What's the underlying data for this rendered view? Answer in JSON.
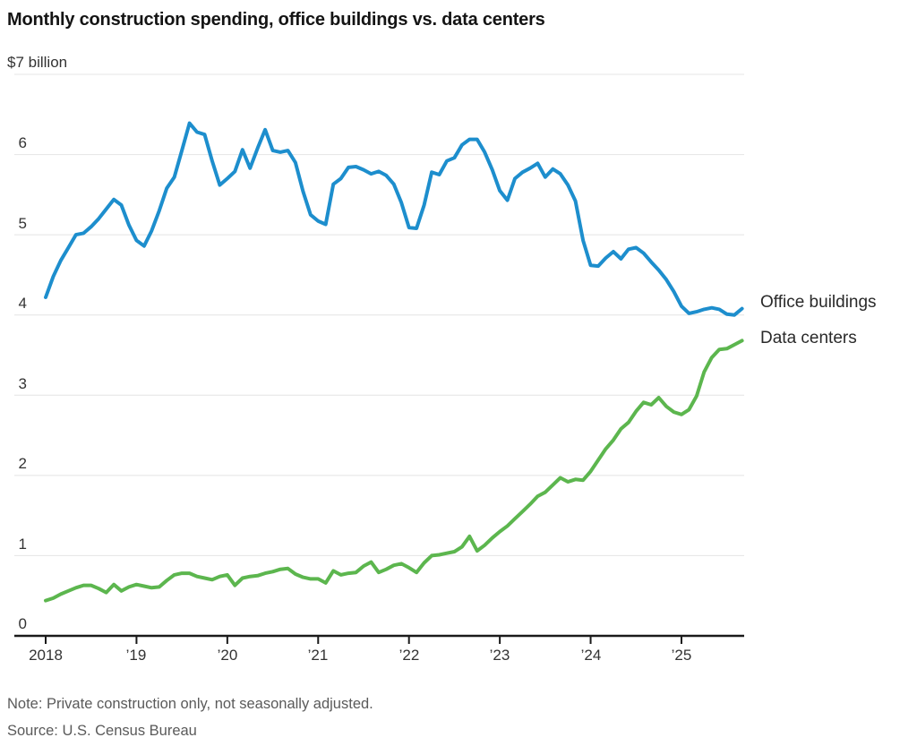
{
  "title": "Monthly construction spending, office buildings vs. data centers",
  "y_axis": {
    "top_label": "$7 billion",
    "ticks": [
      "6",
      "5",
      "4",
      "3",
      "2",
      "1",
      "0"
    ]
  },
  "x_axis": {
    "ticks": [
      "2018",
      "’19",
      "’20",
      "’21",
      "’22",
      "’23",
      "’24",
      "’25"
    ]
  },
  "legend": {
    "office": "Office buildings",
    "datacenters": "Data centers"
  },
  "note": "Note: Private construction only, not seasonally adjusted.",
  "source": "Source: U.S. Census Bureau",
  "colors": {
    "office": "#1d8ecd",
    "datacenters": "#5cb64e",
    "grid": "#e4e4e4",
    "axis": "#1a1a1a"
  },
  "chart_data": {
    "type": "line",
    "title": "Monthly construction spending, office buildings vs. data centers",
    "unit": "USD billions",
    "frequency": "monthly",
    "x_start": "Jan 2018",
    "x_end": "Sep 2025",
    "ylim": [
      0,
      7
    ],
    "grid": "horizontal",
    "legend_position": "right-of-line-ends",
    "x_tick_labels": [
      "2018",
      "’19",
      "’20",
      "’21",
      "’22",
      "’23",
      "’24",
      "’25"
    ],
    "series": [
      {
        "name": "Office buildings",
        "color": "#1d8ecd",
        "values": [
          4.22,
          4.48,
          4.68,
          4.84,
          5.0,
          5.02,
          5.1,
          5.2,
          5.32,
          5.44,
          5.37,
          5.12,
          4.93,
          4.86,
          5.05,
          5.3,
          5.58,
          5.72,
          6.05,
          6.39,
          6.28,
          6.25,
          5.92,
          5.62,
          5.7,
          5.79,
          6.06,
          5.83,
          6.08,
          6.31,
          6.05,
          6.03,
          6.05,
          5.9,
          5.54,
          5.25,
          5.17,
          5.13,
          5.63,
          5.7,
          5.84,
          5.85,
          5.81,
          5.76,
          5.79,
          5.74,
          5.63,
          5.4,
          5.09,
          5.08,
          5.37,
          5.78,
          5.75,
          5.92,
          5.96,
          6.12,
          6.19,
          6.19,
          6.03,
          5.81,
          5.55,
          5.43,
          5.7,
          5.78,
          5.83,
          5.89,
          5.72,
          5.82,
          5.76,
          5.62,
          5.42,
          4.93,
          4.62,
          4.61,
          4.71,
          4.79,
          4.7,
          4.82,
          4.84,
          4.77,
          4.66,
          4.56,
          4.44,
          4.29,
          4.11,
          4.02,
          4.04,
          4.07,
          4.09,
          4.07,
          4.01,
          4.0,
          4.08
        ]
      },
      {
        "name": "Data centers",
        "color": "#5cb64e",
        "values": [
          0.44,
          0.47,
          0.52,
          0.56,
          0.6,
          0.63,
          0.63,
          0.59,
          0.54,
          0.64,
          0.56,
          0.61,
          0.64,
          0.62,
          0.6,
          0.61,
          0.69,
          0.76,
          0.78,
          0.78,
          0.74,
          0.72,
          0.7,
          0.74,
          0.76,
          0.63,
          0.72,
          0.74,
          0.75,
          0.78,
          0.8,
          0.83,
          0.84,
          0.77,
          0.73,
          0.71,
          0.71,
          0.66,
          0.81,
          0.76,
          0.78,
          0.79,
          0.87,
          0.92,
          0.79,
          0.83,
          0.88,
          0.9,
          0.85,
          0.79,
          0.91,
          1.0,
          1.01,
          1.03,
          1.05,
          1.11,
          1.24,
          1.06,
          1.13,
          1.22,
          1.3,
          1.37,
          1.46,
          1.55,
          1.64,
          1.74,
          1.79,
          1.88,
          1.97,
          1.92,
          1.95,
          1.94,
          2.05,
          2.19,
          2.33,
          2.44,
          2.58,
          2.66,
          2.8,
          2.91,
          2.88,
          2.97,
          2.86,
          2.79,
          2.76,
          2.82,
          2.99,
          3.29,
          3.47,
          3.57,
          3.58,
          3.63,
          3.68
        ]
      }
    ]
  }
}
